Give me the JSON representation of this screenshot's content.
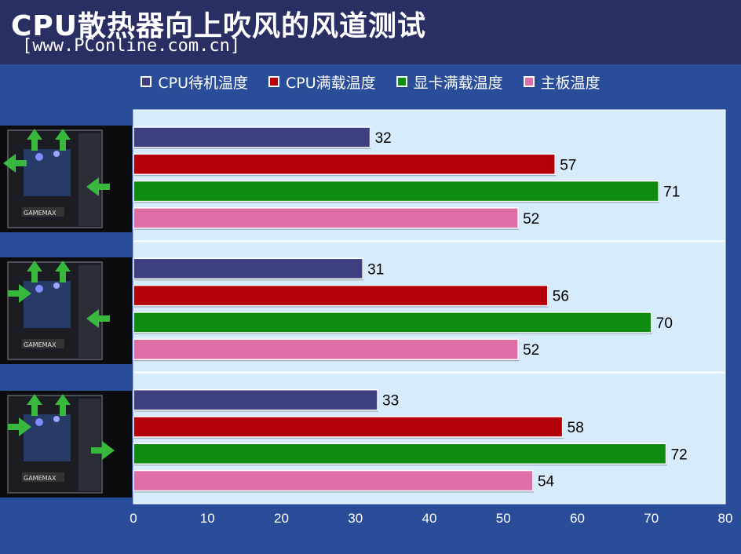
{
  "header": {
    "title": "CPU散热器向上吹风的风道测试",
    "subtitle": "[www.PConline.com.cn]"
  },
  "colors": {
    "background": "#2a4d9a",
    "header_bg": "#2a2f63",
    "plot_bg": "#d6ebfc"
  },
  "chart_data": {
    "type": "bar",
    "orientation": "horizontal",
    "title": "CPU散热器向上吹风的风道测试",
    "categories": [
      "",
      "",
      ""
    ],
    "series": [
      {
        "name": "CPU待机温度",
        "color": "#3e3f80",
        "values": [
          32,
          31,
          33
        ]
      },
      {
        "name": "CPU满载温度",
        "color": "#b40008",
        "values": [
          57,
          56,
          58
        ]
      },
      {
        "name": "显卡满载温度",
        "color": "#0d8c10",
        "values": [
          71,
          70,
          72
        ]
      },
      {
        "name": "主板温度",
        "color": "#de6fa6",
        "values": [
          52,
          52,
          54
        ]
      }
    ],
    "xlim": [
      0,
      80
    ],
    "xticks": [
      "0",
      "10",
      "20",
      "30",
      "40",
      "50",
      "60",
      "70",
      "80"
    ],
    "xlabel": "",
    "ylabel": "",
    "grid": false,
    "legend": "top"
  },
  "images": [
    {
      "icon": "pc-case-airflow-icon"
    },
    {
      "icon": "pc-case-airflow-icon"
    },
    {
      "icon": "pc-case-airflow-icon"
    }
  ]
}
